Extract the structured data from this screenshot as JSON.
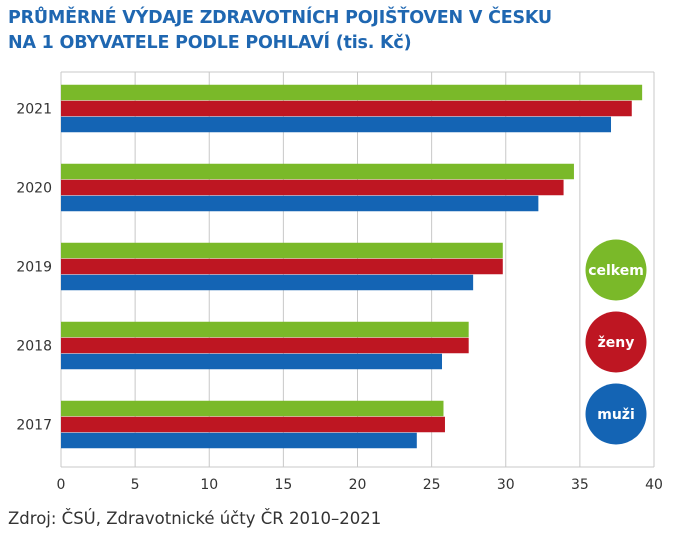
{
  "title_lines": [
    "PRŮMĚRNÉ VÝDAJE ZDRAVOTNÍCH POJIŠŤOVEN V ČESKU",
    "NA 1 OBYVATELE PODLE POHLAVÍ (tis. Kč)"
  ],
  "source": "Zdroj: ČSÚ, Zdravotnické účty ČR 2010–2021",
  "chart_data": {
    "type": "bar",
    "orientation": "horizontal",
    "title": "PRŮMĚRNÉ VÝDAJE ZDRAVOTNÍCH POJIŠŤOVEN V ČESKU NA 1 OBYVATELE PODLE POHLAVÍ (tis. Kč)",
    "categories": [
      "2021",
      "2020",
      "2019",
      "2018",
      "2017"
    ],
    "series": [
      {
        "name": "celkem",
        "color": "#7ab929",
        "values": [
          39.2,
          34.6,
          29.8,
          27.5,
          25.8
        ]
      },
      {
        "name": "ženy",
        "color": "#be1622",
        "values": [
          38.5,
          33.9,
          29.8,
          27.5,
          25.9
        ]
      },
      {
        "name": "muži",
        "color": "#1464b4",
        "values": [
          37.1,
          32.2,
          27.8,
          25.7,
          24.0
        ]
      }
    ],
    "xlim": [
      0,
      40
    ],
    "xticks": [
      0,
      5,
      10,
      15,
      20,
      25,
      30,
      35,
      40
    ],
    "grid": true,
    "legend": "right"
  }
}
